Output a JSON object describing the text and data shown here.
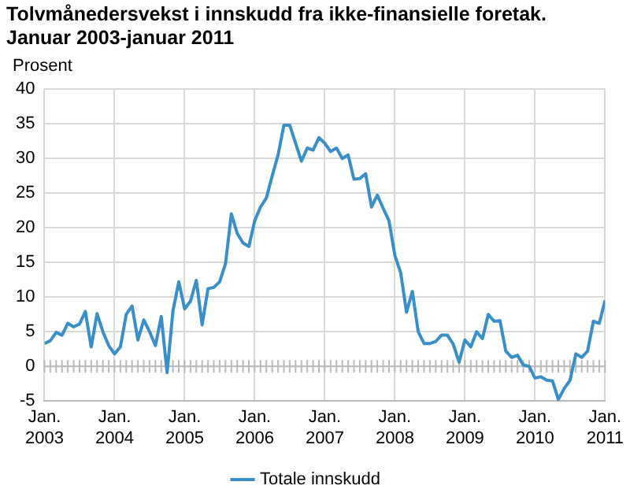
{
  "chart_data": {
    "type": "line",
    "title": "Tolvmånedersvekst i innskudd fra ikke-finansielle foretak.\nJanuar 2003-januar 2011",
    "ylabel": "Prosent",
    "x": [
      "2003-01",
      "2003-02",
      "2003-03",
      "2003-04",
      "2003-05",
      "2003-06",
      "2003-07",
      "2003-08",
      "2003-09",
      "2003-10",
      "2003-11",
      "2003-12",
      "2004-01",
      "2004-02",
      "2004-03",
      "2004-04",
      "2004-05",
      "2004-06",
      "2004-07",
      "2004-08",
      "2004-09",
      "2004-10",
      "2004-11",
      "2004-12",
      "2005-01",
      "2005-02",
      "2005-03",
      "2005-04",
      "2005-05",
      "2005-06",
      "2005-07",
      "2005-08",
      "2005-09",
      "2005-10",
      "2005-11",
      "2005-12",
      "2006-01",
      "2006-02",
      "2006-03",
      "2006-04",
      "2006-05",
      "2006-06",
      "2006-07",
      "2006-08",
      "2006-09",
      "2006-10",
      "2006-11",
      "2006-12",
      "2007-01",
      "2007-02",
      "2007-03",
      "2007-04",
      "2007-05",
      "2007-06",
      "2007-07",
      "2007-08",
      "2007-09",
      "2007-10",
      "2007-11",
      "2007-12",
      "2008-01",
      "2008-02",
      "2008-03",
      "2008-04",
      "2008-05",
      "2008-06",
      "2008-07",
      "2008-08",
      "2008-09",
      "2008-10",
      "2008-11",
      "2008-12",
      "2009-01",
      "2009-02",
      "2009-03",
      "2009-04",
      "2009-05",
      "2009-06",
      "2009-07",
      "2009-08",
      "2009-09",
      "2009-10",
      "2009-11",
      "2009-12",
      "2010-01",
      "2010-02",
      "2010-03",
      "2010-04",
      "2010-05",
      "2010-06",
      "2010-07",
      "2010-08",
      "2010-09",
      "2010-10",
      "2010-11",
      "2010-12",
      "2011-01"
    ],
    "series": [
      {
        "name": "Totale innskudd",
        "color": "#3a8fc9",
        "values": [
          3.3,
          3.7,
          4.9,
          4.5,
          6.2,
          5.7,
          6.1,
          7.9,
          2.8,
          7.6,
          5.0,
          3.0,
          1.8,
          2.8,
          7.5,
          8.7,
          3.8,
          6.7,
          5.0,
          3.0,
          7.2,
          -0.9,
          8.0,
          12.2,
          8.3,
          9.4,
          12.4,
          6.0,
          11.2,
          11.4,
          12.2,
          14.8,
          22.0,
          19.2,
          17.8,
          17.3,
          21.0,
          23.0,
          24.3,
          27.5,
          30.5,
          34.8,
          34.8,
          32.2,
          29.6,
          31.5,
          31.2,
          33.0,
          32.2,
          31.0,
          31.5,
          30.0,
          30.5,
          27.0,
          27.1,
          27.8,
          23.0,
          24.7,
          22.8,
          21.0,
          16.0,
          13.5,
          7.8,
          10.8,
          5.0,
          3.3,
          3.3,
          3.6,
          4.5,
          4.5,
          3.2,
          0.6,
          3.8,
          2.8,
          5.0,
          4.0,
          7.5,
          6.5,
          6.6,
          2.2,
          1.3,
          1.6,
          0.2,
          0.0,
          -1.7,
          -1.5,
          -2.0,
          -2.1,
          -4.8,
          -3.2,
          -2.0,
          1.8,
          1.3,
          2.2,
          6.5,
          6.2,
          9.5
        ]
      }
    ],
    "xlim": [
      "2003-01",
      "2011-01"
    ],
    "xticks": [
      {
        "value": "2003-01",
        "label": "Jan.\n2003"
      },
      {
        "value": "2004-01",
        "label": "Jan.\n2004"
      },
      {
        "value": "2005-01",
        "label": "Jan.\n2005"
      },
      {
        "value": "2006-01",
        "label": "Jan.\n2006"
      },
      {
        "value": "2007-01",
        "label": "Jan.\n2007"
      },
      {
        "value": "2008-01",
        "label": "Jan.\n2008"
      },
      {
        "value": "2009-01",
        "label": "Jan.\n2009"
      },
      {
        "value": "2010-01",
        "label": "Jan.\n2010"
      },
      {
        "value": "2011-01",
        "label": "Jan.\n2011"
      }
    ],
    "ylim": [
      -5,
      40
    ],
    "yticks": [
      -5,
      0,
      5,
      10,
      15,
      20,
      25,
      30,
      35,
      40
    ],
    "grid": true,
    "legend": "bottom",
    "marker": "none",
    "line_style": "solid"
  }
}
